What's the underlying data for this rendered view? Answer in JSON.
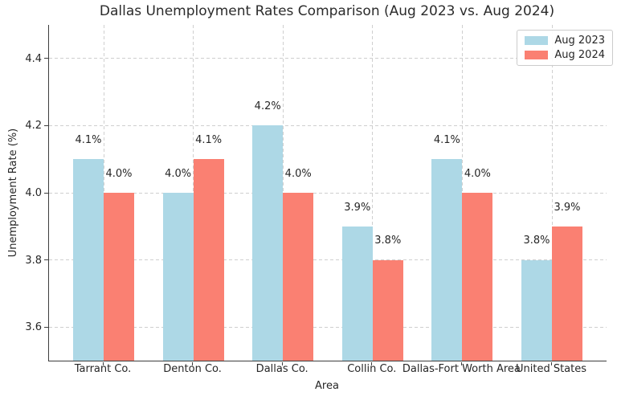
{
  "chart_data": {
    "type": "bar",
    "title": "Dallas Unemployment Rates Comparison (Aug 2023 vs. Aug 2024)",
    "xlabel": "Area",
    "ylabel": "Unemployment Rate (%)",
    "categories": [
      "Tarrant Co.",
      "Denton Co.",
      "Dallas Co.",
      "Collin Co.",
      "Dallas-Fort Worth Area",
      "United States"
    ],
    "series": [
      {
        "name": "Aug 2023",
        "color": "#ADD8E6",
        "values": [
          4.1,
          4.0,
          4.2,
          3.9,
          4.1,
          3.8
        ],
        "bar_labels": [
          "4.1%",
          "4.0%",
          "4.2%",
          "3.9%",
          "4.1%",
          "3.8%"
        ]
      },
      {
        "name": "Aug 2024",
        "color": "#FA8072",
        "values": [
          4.0,
          4.1,
          4.0,
          3.8,
          4.0,
          3.9
        ],
        "bar_labels": [
          "4.0%",
          "4.1%",
          "4.0%",
          "3.8%",
          "4.0%",
          "3.9%"
        ]
      }
    ],
    "ylim": [
      3.5,
      4.5
    ],
    "yticks": [
      3.6,
      3.8,
      4.0,
      4.2,
      4.4
    ],
    "ytick_labels": [
      "3.6",
      "3.8",
      "4.0",
      "4.2",
      "4.4"
    ],
    "grid": "dashed, horizontal and vertical",
    "legend_position": "upper right",
    "colors": {
      "grid": "#cfcfcf",
      "spine": "#3d3d3d",
      "text": "#262626",
      "background": "#ffffff"
    }
  }
}
